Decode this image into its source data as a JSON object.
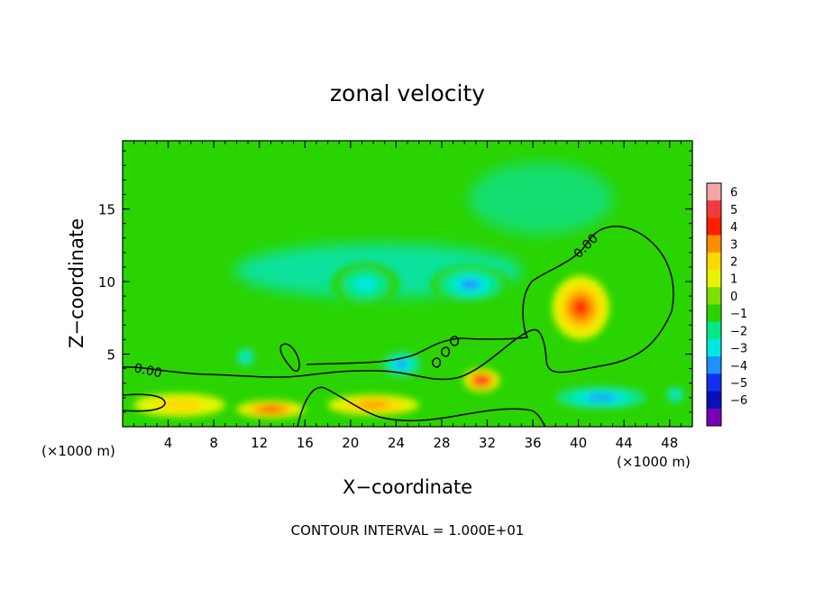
{
  "chart_data": {
    "type": "heatmap",
    "title": "zonal velocity",
    "xlabel": "X−coordinate",
    "ylabel": "Z−coordinate",
    "x_unit_left": "(×1000 m)",
    "x_unit_right": "(×1000 m)",
    "footer": "CONTOUR INTERVAL = 1.000E+01",
    "xlim": [
      0,
      50
    ],
    "ylim": [
      0,
      19.7
    ],
    "x_ticks": [
      4,
      8,
      12,
      16,
      20,
      24,
      28,
      32,
      36,
      40,
      44,
      48
    ],
    "x_tick_labels": [
      "4",
      "8",
      "12",
      "16",
      "20",
      "24",
      "28",
      "32",
      "36",
      "40",
      "44",
      "48"
    ],
    "y_ticks": [
      5,
      10,
      15
    ],
    "y_tick_labels": [
      "5",
      "10",
      "15"
    ],
    "colorbar": {
      "levels": [
        6,
        5,
        4,
        3,
        2,
        1,
        0,
        -1,
        -2,
        -3,
        -4,
        -5,
        -6
      ],
      "labels": [
        "6",
        "5",
        "4",
        "3",
        "2",
        "1",
        "0",
        "−1",
        "−2",
        "−3",
        "−4",
        "−5",
        "−6"
      ],
      "colors": [
        "#f4a6a6",
        "#f23a3a",
        "#ff1e00",
        "#ff8c00",
        "#ffd800",
        "#e6f500",
        "#7ee000",
        "#2ad400",
        "#00e888",
        "#00e8e0",
        "#1e90ff",
        "#1030f0",
        "#0a10b8",
        "#7a00b8"
      ]
    },
    "background_value": -1,
    "features": [
      {
        "x": 21.3,
        "z": 9.8,
        "value": -3,
        "rx": 3.0,
        "rz": 1.5
      },
      {
        "x": 30.5,
        "z": 9.8,
        "value": -3.5,
        "rx": 3.5,
        "rz": 1.3
      },
      {
        "x": 24.5,
        "z": 4.3,
        "value": -4,
        "rx": 2.0,
        "rz": 1.0
      },
      {
        "x": 10.8,
        "z": 4.8,
        "value": -3,
        "rx": 1.0,
        "rz": 0.8
      },
      {
        "x": 40.2,
        "z": 8.2,
        "value": 4,
        "rx": 2.5,
        "rz": 2.2
      },
      {
        "x": 31.5,
        "z": 3.2,
        "value": 5,
        "rx": 1.6,
        "rz": 0.8
      },
      {
        "x": 22.0,
        "z": 1.5,
        "value": 3,
        "rx": 4.0,
        "rz": 0.7
      },
      {
        "x": 13.0,
        "z": 1.2,
        "value": 4,
        "rx": 3.0,
        "rz": 0.6
      },
      {
        "x": 42.0,
        "z": 2.0,
        "value": -4,
        "rx": 5.0,
        "rz": 0.9
      },
      {
        "x": 48.5,
        "z": 2.2,
        "value": -3,
        "rx": 1.0,
        "rz": 0.7
      },
      {
        "x": 5.0,
        "z": 1.5,
        "value": 2,
        "rx": 4.0,
        "rz": 0.8
      }
    ],
    "contour_label": "0.00",
    "grid": false,
    "legend": "right (colorbar)"
  }
}
